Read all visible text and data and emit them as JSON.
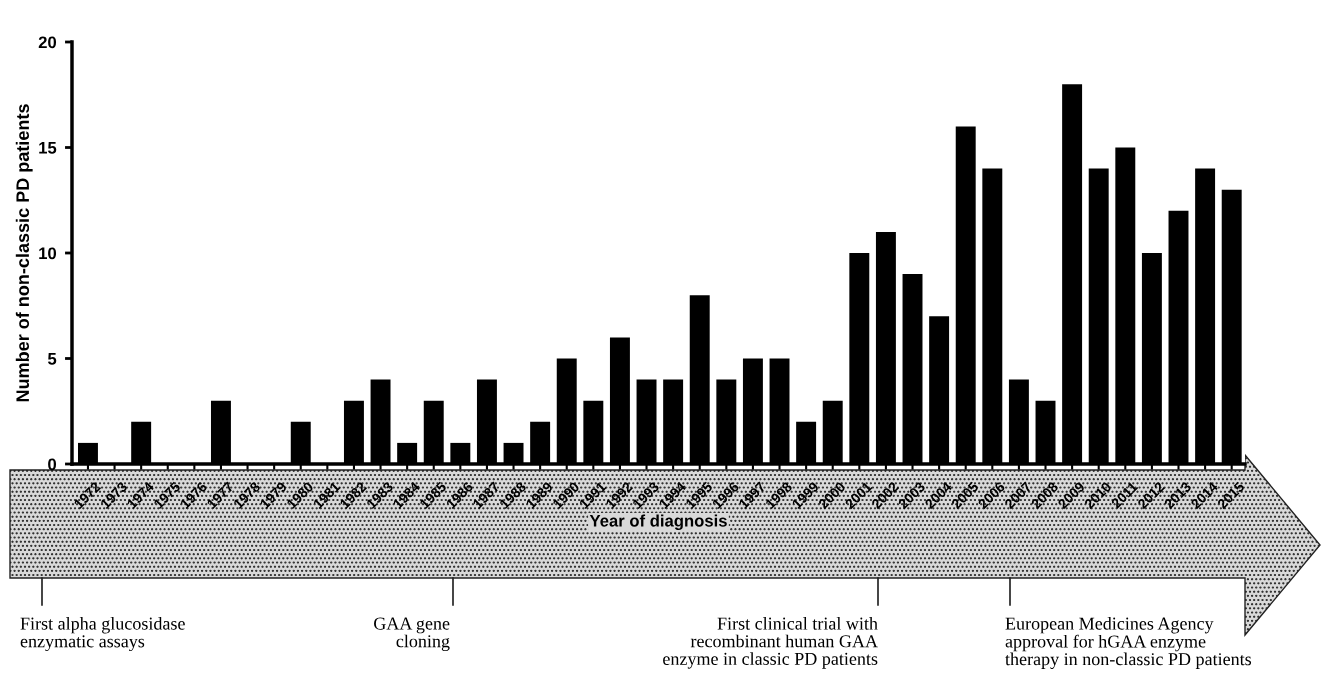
{
  "chart_data": {
    "type": "bar",
    "xlabel": "Year of diagnosis",
    "ylabel": "Number of non-classic PD patients",
    "categories": [
      "1972",
      "1973",
      "1974",
      "1975",
      "1976",
      "1977",
      "1978",
      "1979",
      "1980",
      "1981",
      "1982",
      "1983",
      "1984",
      "1985",
      "1986",
      "1987",
      "1988",
      "1989",
      "1990",
      "1991",
      "1992",
      "1993",
      "1994",
      "1995",
      "1996",
      "1997",
      "1998",
      "1999",
      "2000",
      "2001",
      "2002",
      "2003",
      "2004",
      "2005",
      "2006",
      "2007",
      "2008",
      "2009",
      "2010",
      "2011",
      "2012",
      "2013",
      "2014",
      "2015"
    ],
    "values": [
      1,
      0,
      2,
      0,
      0,
      3,
      0,
      0,
      2,
      0,
      3,
      4,
      1,
      3,
      1,
      4,
      1,
      2,
      5,
      3,
      6,
      4,
      4,
      8,
      4,
      5,
      5,
      2,
      3,
      10,
      11,
      9,
      7,
      16,
      14,
      4,
      3,
      18,
      14,
      15,
      10,
      12,
      14,
      13
    ],
    "color": "#000000",
    "ylim": [
      0,
      20
    ],
    "yticks": [
      0,
      5,
      10,
      15,
      20
    ],
    "grid": false,
    "legend": false,
    "annotations": [
      "First alpha glucosidase\nenzymatic assays",
      "GAA gene\ncloning",
      "First clinical trial with\nrecombinant human GAA\nenzyme in classic PD patients",
      "European Medicines Agency\napproval for hGAA enzyme\ntherapy in non-classic PD patients"
    ]
  }
}
